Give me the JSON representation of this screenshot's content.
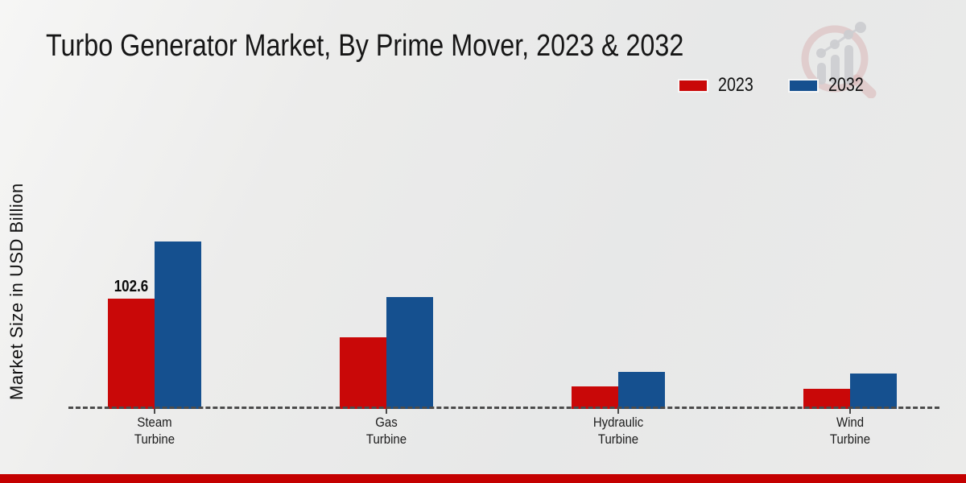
{
  "page_title": "Turbo Generator Market, By Prime Mover, 2023 & 2032",
  "icons": {
    "watermark_logo": "magnifier-bar-chart-watermark"
  },
  "theme": {
    "bar_red": "#c90808",
    "bar_blue": "#15508f",
    "footer_band_color": "#c40000",
    "baseline_color": "#4b4b4b"
  },
  "chart_data": {
    "type": "bar",
    "title": "Turbo Generator Market, By Prime Mover, 2023 & 2032",
    "xlabel": "",
    "ylabel": "Market Size in USD Billion",
    "ylim": [
      0,
      160
    ],
    "grid": false,
    "legend_position": "top-right",
    "baseline_style": "dashed",
    "categories": [
      "Steam\nTurbine",
      "Gas\nTurbine",
      "Hydraulic\nTurbine",
      "Wind\nTurbine"
    ],
    "series": [
      {
        "name": "2023",
        "color": "#c90808",
        "values": [
          102.6,
          66.7,
          21.0,
          18.7
        ],
        "shown_labels": [
          "102.6",
          "",
          "",
          ""
        ]
      },
      {
        "name": "2032",
        "color": "#15508f",
        "values": [
          155.8,
          104.1,
          34.5,
          33.0
        ],
        "shown_labels": [
          "",
          "",
          "",
          ""
        ]
      }
    ]
  }
}
